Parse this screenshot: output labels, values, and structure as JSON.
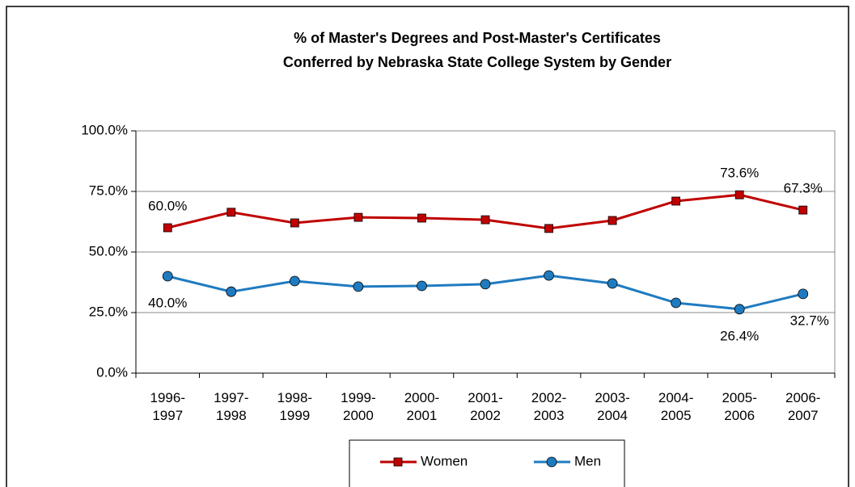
{
  "chart_data": {
    "type": "line",
    "title": [
      "% of Master's Degrees and Post-Master's Certificates",
      "Conferred by Nebraska State College System by Gender"
    ],
    "categories": [
      "1996-1997",
      "1997-1998",
      "1998-1999",
      "1999-2000",
      "2000-2001",
      "2001-2002",
      "2002-2003",
      "2003-2004",
      "2004-2005",
      "2005-2006",
      "2006-2007"
    ],
    "series": [
      {
        "name": "Women",
        "color": "#c00000",
        "marker": "square",
        "values": [
          60.0,
          66.4,
          62.0,
          64.3,
          64.0,
          63.3,
          59.7,
          63.0,
          71.0,
          73.6,
          67.3
        ],
        "value_labels": [
          "60.0%",
          null,
          null,
          null,
          null,
          null,
          null,
          null,
          null,
          "73.6%",
          "67.3%"
        ]
      },
      {
        "name": "Men",
        "color": "#1f7bc0",
        "marker": "circle",
        "values": [
          40.0,
          33.6,
          38.0,
          35.7,
          36.0,
          36.7,
          40.3,
          37.0,
          29.0,
          26.4,
          32.7
        ],
        "value_labels": [
          "40.0%",
          null,
          null,
          null,
          null,
          null,
          null,
          null,
          null,
          "26.4%",
          "32.7%"
        ]
      }
    ],
    "ylim": [
      0,
      100
    ],
    "yticks": [
      {
        "value": 0,
        "label": "0.0%"
      },
      {
        "value": 25,
        "label": "25.0%"
      },
      {
        "value": 50,
        "label": "50.0%"
      },
      {
        "value": 75,
        "label": "75.0%"
      },
      {
        "value": 100,
        "label": "100.0%"
      }
    ],
    "grid": true,
    "legend": "bottom"
  }
}
